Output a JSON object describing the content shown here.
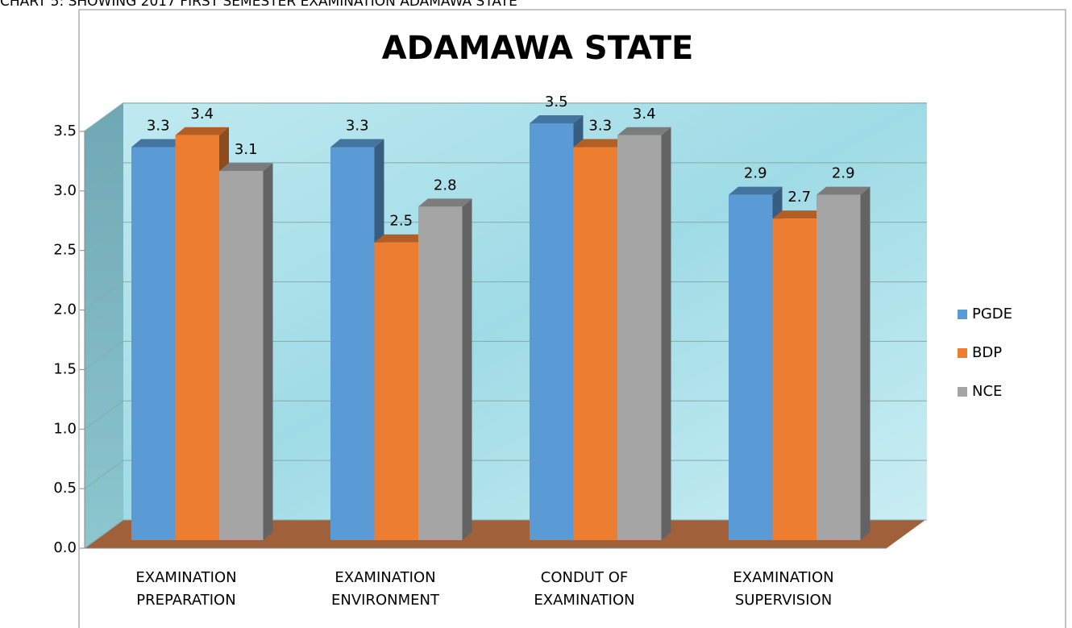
{
  "caption": "CHART 5: SHOWING 2017 FIRST SEMESTER EXAMINATION ADAMAWA STATE",
  "chart_data": {
    "type": "bar3d",
    "title": "ADAMAWA STATE",
    "categories": [
      "EXAMINATION PREPARATION",
      "EXAMINATION ENVIRONMENT",
      "CONDUT OF EXAMINATION",
      "EXAMINATION SUPERVISION"
    ],
    "series": [
      {
        "name": "PGDE",
        "color": "#5b9bd5",
        "values": [
          3.3,
          3.3,
          3.5,
          2.9
        ]
      },
      {
        "name": "BDP",
        "color": "#ed7d31",
        "values": [
          3.4,
          2.5,
          3.3,
          2.7
        ]
      },
      {
        "name": "NCE",
        "color": "#a5a5a5",
        "values": [
          3.1,
          2.8,
          3.4,
          2.9
        ]
      }
    ],
    "ylim": [
      0,
      3.5
    ],
    "yticks": [
      {
        "value": 0,
        "label": "0.0"
      },
      0.5,
      {
        "value": 1,
        "label": "1.0"
      },
      1.5,
      {
        "value": 2,
        "label": "2.0"
      },
      2.5,
      {
        "value": 3,
        "label": "3.0"
      },
      3.5
    ],
    "grid": true,
    "legend": "right"
  }
}
